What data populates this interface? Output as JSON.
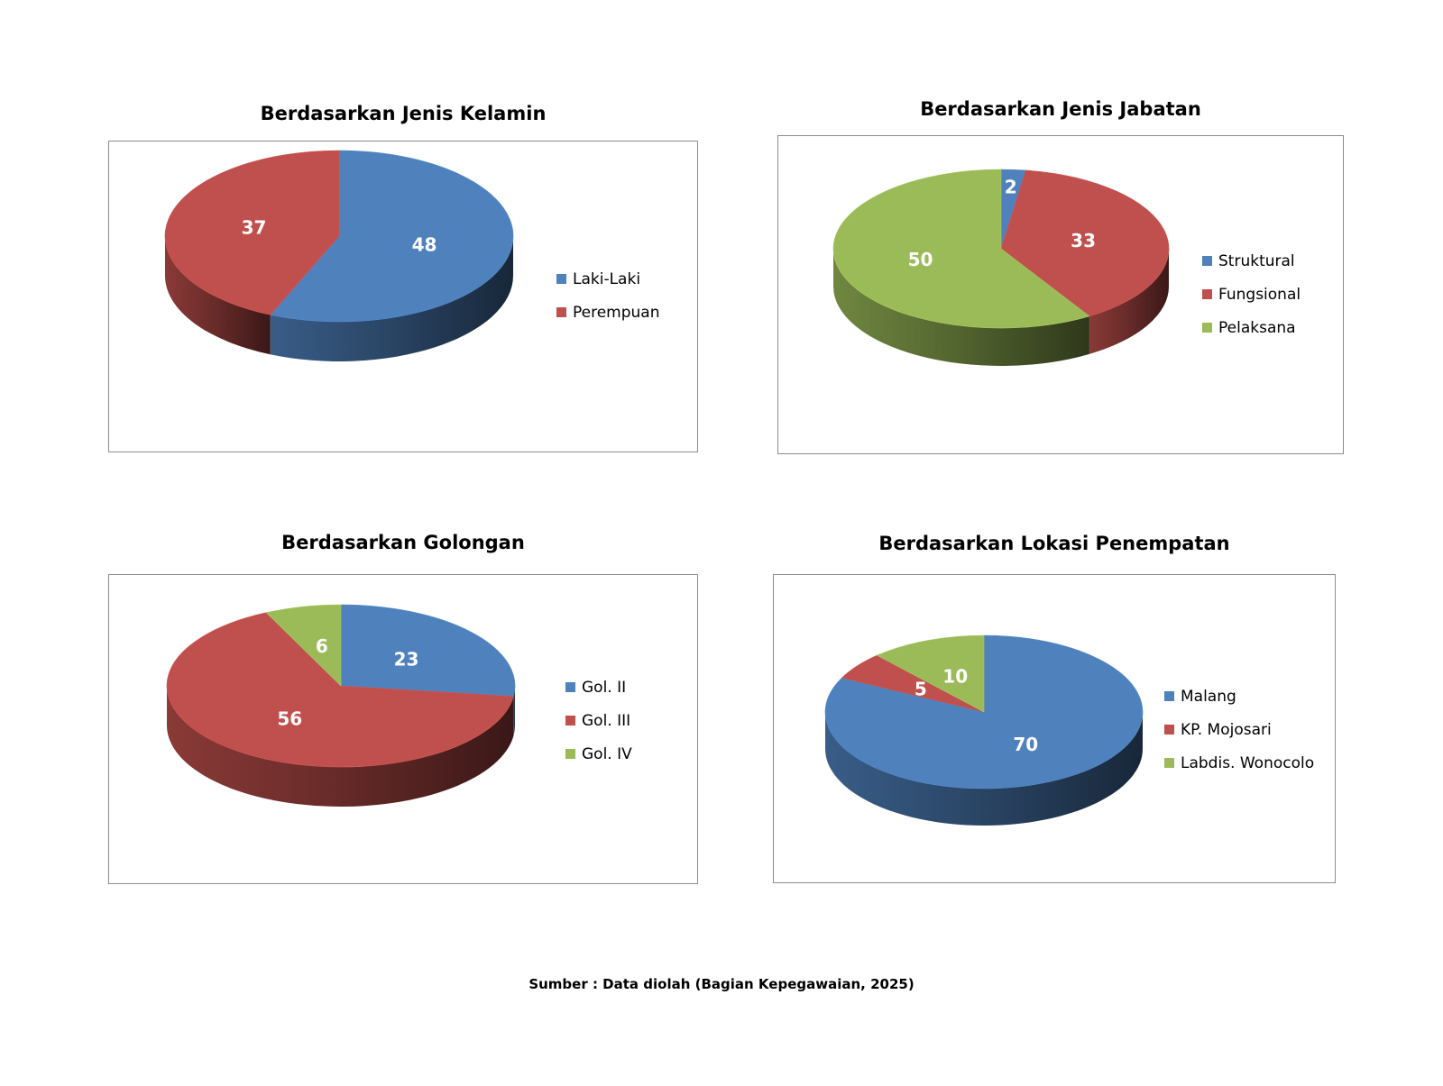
{
  "chart_data": [
    {
      "type": "pie",
      "title": "Berdasarkan Jenis Kelamin",
      "categories": [
        "Laki-Laki",
        "Perempuan"
      ],
      "values": [
        48,
        37
      ],
      "colors": [
        "#4f81bd",
        "#c0504d"
      ],
      "legend_position": "right"
    },
    {
      "type": "pie",
      "title": "Berdasarkan Jenis Jabatan",
      "categories": [
        "Struktural",
        "Fungsional",
        "Pelaksana"
      ],
      "values": [
        2,
        33,
        50
      ],
      "colors": [
        "#4f81bd",
        "#c0504d",
        "#9bbb59"
      ],
      "legend_position": "right"
    },
    {
      "type": "pie",
      "title": "Berdasarkan Golongan",
      "categories": [
        "Gol. II",
        "Gol. III",
        "Gol. IV"
      ],
      "values": [
        23,
        56,
        6
      ],
      "colors": [
        "#4f81bd",
        "#c0504d",
        "#9bbb59"
      ],
      "legend_position": "right"
    },
    {
      "type": "pie",
      "title": "Berdasarkan Lokasi Penempatan",
      "categories": [
        "Malang",
        "KP. Mojosari",
        "Labdis. Wonocolo"
      ],
      "values": [
        70,
        5,
        10
      ],
      "colors": [
        "#4f81bd",
        "#c0504d",
        "#9bbb59"
      ],
      "legend_position": "right"
    }
  ],
  "source_note": "Sumber : Data diolah (Bagian Kepegawaian, 2025)"
}
